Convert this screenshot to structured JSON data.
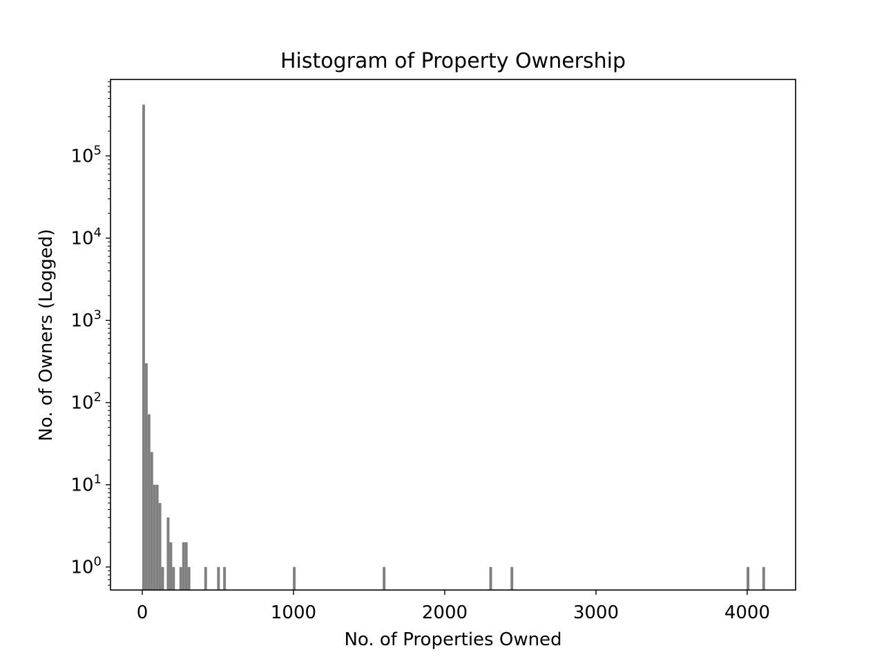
{
  "chart_data": {
    "type": "histogram",
    "title": "Histogram of Property Ownership",
    "xlabel": "No. of Properties Owned",
    "ylabel": "No. of Owners (Logged)",
    "xlim": [
      -210,
      4320
    ],
    "ylim_log10": [
      -0.28,
      5.93
    ],
    "yscale": "log",
    "grid": false,
    "bar_color": "#808080",
    "bin_width": 18,
    "x_ticks": [
      {
        "value": 0,
        "label": "0"
      },
      {
        "value": 1000,
        "label": "1000"
      },
      {
        "value": 2000,
        "label": "2000"
      },
      {
        "value": 3000,
        "label": "3000"
      },
      {
        "value": 4000,
        "label": "4000"
      }
    ],
    "y_ticks": [
      {
        "exp": 0,
        "base": "10",
        "sup": "0"
      },
      {
        "exp": 1,
        "base": "10",
        "sup": "1"
      },
      {
        "exp": 2,
        "base": "10",
        "sup": "2"
      },
      {
        "exp": 3,
        "base": "10",
        "sup": "3"
      },
      {
        "exp": 4,
        "base": "10",
        "sup": "4"
      },
      {
        "exp": 5,
        "base": "10",
        "sup": "5"
      }
    ],
    "bins": [
      {
        "x": 0,
        "count": 420000
      },
      {
        "x": 18,
        "count": 300
      },
      {
        "x": 36,
        "count": 72
      },
      {
        "x": 54,
        "count": 25
      },
      {
        "x": 72,
        "count": 10
      },
      {
        "x": 90,
        "count": 10
      },
      {
        "x": 108,
        "count": 6
      },
      {
        "x": 126,
        "count": 1
      },
      {
        "x": 162,
        "count": 4
      },
      {
        "x": 180,
        "count": 2
      },
      {
        "x": 198,
        "count": 1
      },
      {
        "x": 246,
        "count": 1
      },
      {
        "x": 264,
        "count": 2
      },
      {
        "x": 282,
        "count": 2
      },
      {
        "x": 300,
        "count": 1
      },
      {
        "x": 410,
        "count": 1
      },
      {
        "x": 495,
        "count": 1
      },
      {
        "x": 535,
        "count": 1
      },
      {
        "x": 996,
        "count": 1
      },
      {
        "x": 1590,
        "count": 1
      },
      {
        "x": 2295,
        "count": 1
      },
      {
        "x": 2435,
        "count": 1
      },
      {
        "x": 3996,
        "count": 1
      },
      {
        "x": 4100,
        "count": 1
      }
    ]
  }
}
